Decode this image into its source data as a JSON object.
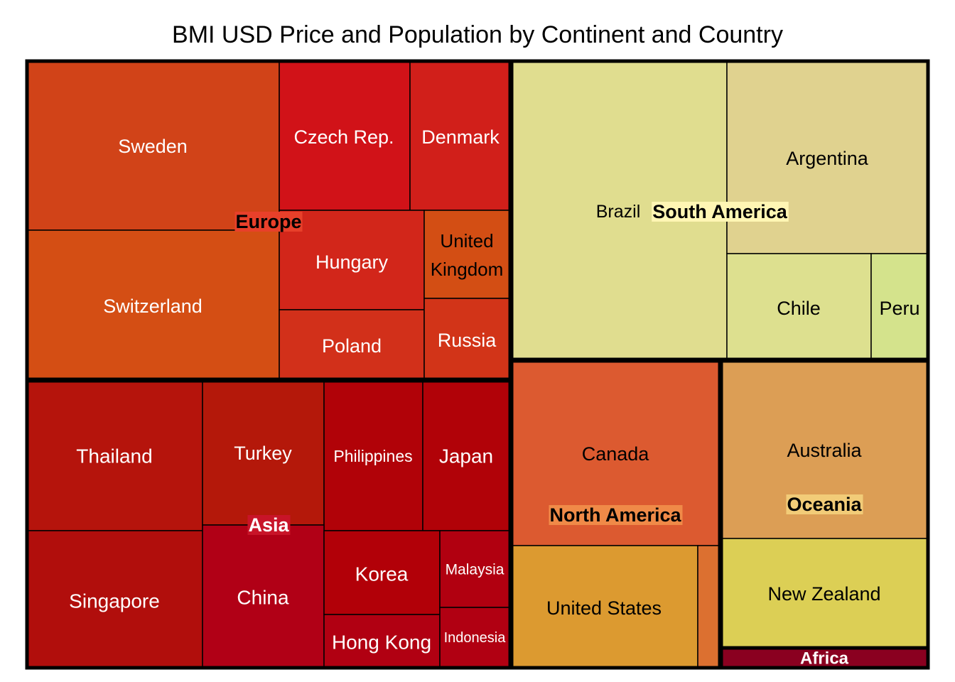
{
  "chart_data": {
    "type": "treemap",
    "title": "BMI USD Price and Population by Continent and Country",
    "groups": [
      {
        "name": "Europe",
        "label_bg": "#e8402a",
        "label_color": "#000000",
        "countries": [
          {
            "name": "Sweden",
            "color": "#d14318",
            "text_color": "#ffffff"
          },
          {
            "name": "Switzerland",
            "color": "#d44e14",
            "text_color": "#ffffff"
          },
          {
            "name": "Czech Rep.",
            "color": "#d11218",
            "text_color": "#ffffff"
          },
          {
            "name": "Denmark",
            "color": "#d11f1a",
            "text_color": "#ffffff"
          },
          {
            "name": "Hungary",
            "color": "#d2261a",
            "text_color": "#ffffff"
          },
          {
            "name": "United Kingdom",
            "display": "United\nKingdom",
            "color": "#d34e14",
            "text_color": "#000000"
          },
          {
            "name": "Poland",
            "color": "#d2301a",
            "text_color": "#ffffff"
          },
          {
            "name": "Russia",
            "color": "#d23418",
            "text_color": "#ffffff"
          }
        ]
      },
      {
        "name": "South America",
        "label_bg": "#fff6b4",
        "label_color": "#000000",
        "countries": [
          {
            "name": "Brazil",
            "color": "#e0dd8f",
            "text_color": "#000000"
          },
          {
            "name": "Argentina",
            "color": "#e0d28f",
            "text_color": "#000000"
          },
          {
            "name": "Chile",
            "color": "#dde08f",
            "text_color": "#000000"
          },
          {
            "name": "Peru",
            "color": "#d4e38c",
            "text_color": "#000000"
          }
        ]
      },
      {
        "name": "Asia",
        "label_bg": "#c81428",
        "label_color": "#ffffff",
        "countries": [
          {
            "name": "Thailand",
            "color": "#b5140c",
            "text_color": "#ffffff"
          },
          {
            "name": "Turkey",
            "color": "#b4180a",
            "text_color": "#ffffff"
          },
          {
            "name": "Philippines",
            "color": "#b10208",
            "text_color": "#ffffff"
          },
          {
            "name": "Japan",
            "color": "#b10208",
            "text_color": "#ffffff"
          },
          {
            "name": "Singapore",
            "color": "#b10e0c",
            "text_color": "#ffffff"
          },
          {
            "name": "China",
            "color": "#b10016",
            "text_color": "#ffffff"
          },
          {
            "name": "Korea",
            "color": "#b20008",
            "text_color": "#ffffff"
          },
          {
            "name": "Malaysia",
            "color": "#b10010",
            "text_color": "#ffffff"
          },
          {
            "name": "Hong Kong",
            "color": "#b10012",
            "text_color": "#ffffff"
          },
          {
            "name": "Indonesia",
            "color": "#b10012",
            "text_color": "#ffffff"
          }
        ]
      },
      {
        "name": "North America",
        "label_bg": "#f08a48",
        "label_color": "#000000",
        "countries": [
          {
            "name": "Canada",
            "color": "#dc5a30",
            "text_color": "#000000"
          },
          {
            "name": "United States",
            "color": "#dc9a30",
            "text_color": "#000000"
          },
          {
            "name": "",
            "color": "#dc7030",
            "text_color": "#000000"
          }
        ]
      },
      {
        "name": "Oceania",
        "label_bg": "#f2cc78",
        "label_color": "#000000",
        "countries": [
          {
            "name": "Australia",
            "color": "#dc9e55",
            "text_color": "#000000"
          },
          {
            "name": "New Zealand",
            "color": "#dccf55",
            "text_color": "#000000"
          }
        ]
      },
      {
        "name": "Africa",
        "label_bg": "#8a0020",
        "label_color": "#ffffff",
        "countries": []
      }
    ]
  }
}
